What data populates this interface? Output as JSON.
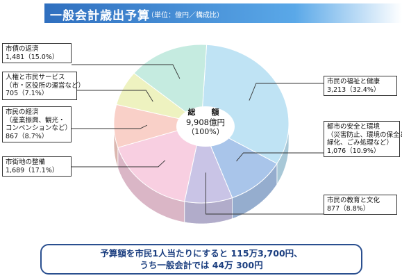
{
  "header": {
    "title": "一般会計歳出予算",
    "unit": "（単位：億円／構成比）"
  },
  "total": {
    "label": "総　額",
    "amount": "9,908億円",
    "percent": "（100%）"
  },
  "summary": {
    "line1": "予算額を市民1人当たりにすると 115万3,700円、",
    "line2": "うち一般会計では 44万 300円"
  },
  "chart_data": {
    "type": "pie",
    "unit": "億円",
    "total": 9908,
    "slices": [
      {
        "label": "市民の福祉と健康",
        "value": 3213,
        "percent": 32.4,
        "color": "#bfe3f4",
        "value_text": "3,213（32.4%）"
      },
      {
        "label": "都市の安全と環境（災害防止、環境の保全と緑化、ごみ処理など）",
        "value": 1076,
        "percent": 10.9,
        "color": "#a9c5ea",
        "value_text": "1,076（10.9%）"
      },
      {
        "label": "市民の教育と文化",
        "value": 877,
        "percent": 8.8,
        "color": "#c9c4e6",
        "value_text": "877（8.8%）"
      },
      {
        "label": "市街地の整備",
        "value": 1689,
        "percent": 17.1,
        "color": "#f8cfe1",
        "value_text": "1,689（17.1%）"
      },
      {
        "label": "市民の経済（産業振興、観光・コンベンションなど）",
        "value": 867,
        "percent": 8.7,
        "color": "#f9d0c8",
        "value_text": "867（8.7%）"
      },
      {
        "label": "人権と市民サービス（市・区役所の運営など）",
        "value": 705,
        "percent": 7.1,
        "color": "#eef2c0",
        "value_text": "705（7.1%）"
      },
      {
        "label": "市債の返済",
        "value": 1481,
        "percent": 15.0,
        "color": "#c5ebe0",
        "value_text": "1,481（15.0%）"
      }
    ]
  },
  "labels": {
    "welfare": {
      "line1": "市民の福祉と健康"
    },
    "safety": {
      "line1": "都市の安全と環境",
      "line2": "（災害防止、環境の保全と",
      "line3": "緑化、ごみ処理など）"
    },
    "education": {
      "line1": "市民の教育と文化"
    },
    "urban": {
      "line1": "市街地の整備"
    },
    "economy": {
      "line1": "市民の経済",
      "line2": "（産業振興、観光・",
      "line3": "コンベンションなど）"
    },
    "rights": {
      "line1": "人権と市民サービス",
      "line2": "（市・区役所の運営など）"
    },
    "debt": {
      "line1": "市債の返済"
    }
  }
}
